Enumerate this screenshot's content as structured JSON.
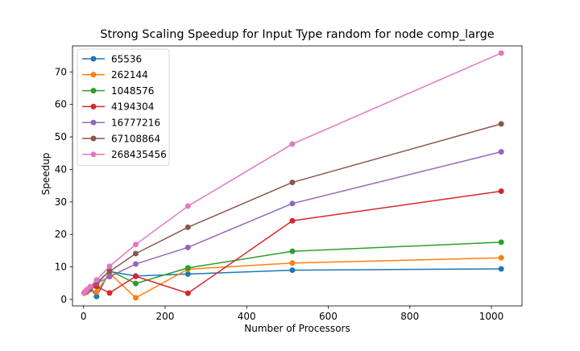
{
  "chart_data": {
    "type": "line",
    "title": "Strong Scaling Speedup for Input Type random for node comp_large",
    "xlabel": "Number of Processors",
    "ylabel": "Speedup",
    "xlim": [
      -27,
      1075
    ],
    "ylim": [
      -2,
      78
    ],
    "xticks": [
      0,
      200,
      400,
      600,
      800,
      1000
    ],
    "yticks": [
      0,
      10,
      20,
      30,
      40,
      50,
      60,
      70
    ],
    "x": [
      2,
      4,
      8,
      16,
      32,
      64,
      128,
      256,
      512,
      1024
    ],
    "legend_loc": "top-left",
    "grid": false,
    "series": [
      {
        "name": "65536",
        "color": "#1f77b4",
        "values": [
          2.0,
          2.1,
          2.3,
          3.6,
          0.9,
          8.6,
          7.2,
          7.8,
          9.0,
          9.4
        ]
      },
      {
        "name": "262144",
        "color": "#ff7f0e",
        "values": [
          2.0,
          2.2,
          2.4,
          3.0,
          2.3,
          8.1,
          0.5,
          9.3,
          11.2,
          12.8
        ]
      },
      {
        "name": "1048576",
        "color": "#2ca02c",
        "values": [
          2.0,
          2.3,
          2.8,
          3.6,
          4.8,
          8.9,
          4.9,
          9.7,
          14.8,
          17.6
        ]
      },
      {
        "name": "4194304",
        "color": "#d62728",
        "values": [
          2.0,
          2.1,
          2.6,
          3.2,
          4.0,
          2.0,
          7.1,
          1.9,
          24.2,
          33.3
        ]
      },
      {
        "name": "16777216",
        "color": "#9467bd",
        "values": [
          2.0,
          2.2,
          2.7,
          3.4,
          4.9,
          7.0,
          10.9,
          16.0,
          29.5,
          45.4
        ]
      },
      {
        "name": "67108864",
        "color": "#8c564b",
        "values": [
          2.0,
          2.3,
          2.9,
          3.6,
          5.2,
          8.6,
          14.1,
          22.2,
          36.0,
          54.0
        ]
      },
      {
        "name": "268435456",
        "color": "#e377c2",
        "values": [
          2.0,
          2.4,
          3.0,
          3.9,
          6.0,
          10.2,
          16.9,
          28.7,
          47.8,
          75.8
        ]
      }
    ]
  }
}
